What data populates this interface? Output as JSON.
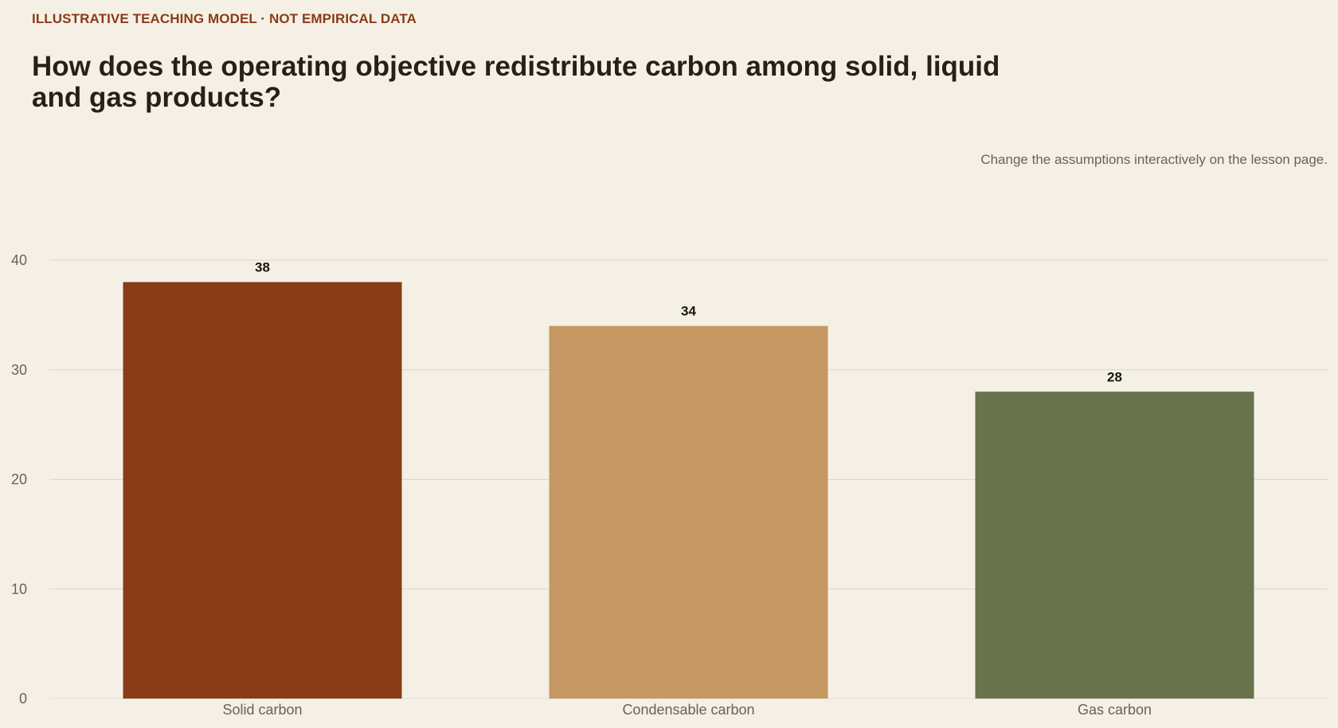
{
  "header": {
    "kicker": "ILLUSTRATIVE TEACHING MODEL · NOT EMPIRICAL DATA",
    "title": "How does the operating objective redistribute carbon among solid, liquid and gas products?",
    "note": "Change the assumptions interactively on the lesson page."
  },
  "chart_data": {
    "type": "bar",
    "categories": [
      "Solid carbon",
      "Condensable carbon",
      "Gas carbon"
    ],
    "values": [
      38,
      34,
      28
    ],
    "colors": [
      "#8a3b18",
      "#c69864",
      "#68734d"
    ],
    "ylim": [
      0,
      40
    ],
    "yticks": [
      0,
      10,
      20,
      30,
      40
    ],
    "data_labels": [
      "38",
      "34",
      "28"
    ],
    "grid": true,
    "legend": "none"
  }
}
